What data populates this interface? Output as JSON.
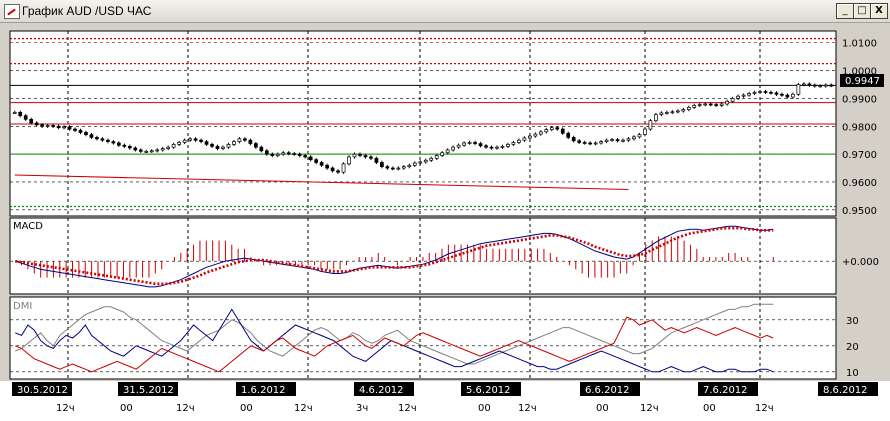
{
  "window": {
    "title": "График AUD /USD ЧАС",
    "minimize_label": "_",
    "maximize_label": "□",
    "close_label": "X"
  },
  "chart_data": [
    {
      "type": "line",
      "panel": "price",
      "y_ticks": [
        "1.0100",
        "1.0000",
        "0.9900",
        "0.9800",
        "0.9700",
        "0.9600",
        "0.9500"
      ],
      "y_tick_values": [
        1.01,
        1.0,
        0.99,
        0.98,
        0.97,
        0.96,
        0.95
      ],
      "ylim": [
        0.9485,
        1.0135
      ],
      "current_price_label": "0.9947",
      "current_price": 0.9947,
      "x_bars": 150,
      "close": [
        0.985,
        0.9838,
        0.9825,
        0.9812,
        0.9805,
        0.98,
        0.9803,
        0.98,
        0.9795,
        0.9798,
        0.979,
        0.9785,
        0.9778,
        0.977,
        0.976,
        0.9755,
        0.975,
        0.9745,
        0.974,
        0.9732,
        0.9728,
        0.9722,
        0.9715,
        0.971,
        0.971,
        0.9712,
        0.9715,
        0.972,
        0.9725,
        0.9735,
        0.9742,
        0.975,
        0.9755,
        0.975,
        0.9745,
        0.9735,
        0.9728,
        0.972,
        0.9725,
        0.9735,
        0.9745,
        0.9755,
        0.975,
        0.9738,
        0.9725,
        0.9712,
        0.97,
        0.9695,
        0.97,
        0.9705,
        0.9702,
        0.97,
        0.9695,
        0.969,
        0.968,
        0.967,
        0.966,
        0.965,
        0.964,
        0.9635,
        0.9665,
        0.969,
        0.97,
        0.9695,
        0.969,
        0.9685,
        0.967,
        0.9655,
        0.965,
        0.9648,
        0.965,
        0.9655,
        0.966,
        0.9668,
        0.9672,
        0.9678,
        0.9685,
        0.9695,
        0.9705,
        0.9715,
        0.9725,
        0.9732,
        0.974,
        0.9742,
        0.9738,
        0.973,
        0.9725,
        0.9722,
        0.9725,
        0.9728,
        0.9735,
        0.9742,
        0.975,
        0.9758,
        0.9765,
        0.9772,
        0.978,
        0.9788,
        0.9795,
        0.979,
        0.9775,
        0.976,
        0.9748,
        0.9742,
        0.974,
        0.9738,
        0.974,
        0.9745,
        0.975,
        0.9752,
        0.9748,
        0.975,
        0.9755,
        0.9762,
        0.977,
        0.979,
        0.982,
        0.9842,
        0.9848,
        0.985,
        0.9852,
        0.9855,
        0.986,
        0.9868,
        0.9875,
        0.9878,
        0.988,
        0.9878,
        0.9875,
        0.988,
        0.989,
        0.99,
        0.9908,
        0.9912,
        0.9918,
        0.9922,
        0.9925,
        0.9922,
        0.992,
        0.9915,
        0.9912,
        0.9905,
        0.9915,
        0.995,
        0.9952,
        0.9948,
        0.9945,
        0.9945,
        0.9948,
        0.9947
      ],
      "horizontal_lines": [
        {
          "value": 1.0115,
          "color": "#cc0000",
          "style": "dotted"
        },
        {
          "value": 1.0025,
          "color": "#cc0000",
          "style": "dotted"
        },
        {
          "value": 0.9947,
          "color": "#000000",
          "style": "solid"
        },
        {
          "value": 0.9885,
          "color": "#cc0000",
          "style": "solid"
        },
        {
          "value": 0.9808,
          "color": "#cc0000",
          "style": "solid"
        },
        {
          "value": 0.97,
          "color": "#008800",
          "style": "solid"
        },
        {
          "value": 0.9512,
          "color": "#008800",
          "style": "dotted"
        }
      ],
      "trendline": {
        "from_bar": 0,
        "from_value": 0.9625,
        "to_bar": 112,
        "to_value": 0.9573,
        "color": "#cc0000"
      }
    },
    {
      "type": "line",
      "panel": "macd",
      "label": "MACD",
      "y_ticks": [
        "+0.000"
      ],
      "y_tick_values": [
        0
      ],
      "ylim": [
        -0.003,
        0.004
      ],
      "macd": [
        0.0,
        -0.0002,
        -0.0004,
        -0.0006,
        -0.0008,
        -0.0009,
        -0.001,
        -0.0011,
        -0.0012,
        -0.0013,
        -0.0014,
        -0.0015,
        -0.0016,
        -0.0017,
        -0.0018,
        -0.0019,
        -0.002,
        -0.0021,
        -0.0022,
        -0.0023,
        -0.0024,
        -0.0025,
        -0.0025,
        -0.0024,
        -0.0022,
        -0.002,
        -0.0018,
        -0.0015,
        -0.0012,
        -0.0009,
        -0.0006,
        -0.0004,
        -0.0002,
        0.0,
        0.0001,
        0.0002,
        0.0003,
        0.0002,
        0.0001,
        0.0,
        -0.0001,
        -0.0002,
        -0.0003,
        -0.0004,
        -0.0005,
        -0.0006,
        -0.0007,
        -0.0008,
        -0.001,
        -0.0011,
        -0.0012,
        -0.0012,
        -0.0011,
        -0.0009,
        -0.0007,
        -0.0006,
        -0.0005,
        -0.0004,
        -0.0005,
        -0.0006,
        -0.0007,
        -0.0006,
        -0.0005,
        -0.0004,
        -0.0003,
        -0.0001,
        0.0001,
        0.0004,
        0.0007,
        0.0009,
        0.0011,
        0.0013,
        0.0015,
        0.0017,
        0.0018,
        0.0019,
        0.002,
        0.0021,
        0.0022,
        0.0023,
        0.0024,
        0.0025,
        0.0026,
        0.0027,
        0.0027,
        0.0026,
        0.0024,
        0.0022,
        0.0019,
        0.0016,
        0.0013,
        0.001,
        0.0008,
        0.0006,
        0.0004,
        0.0003,
        0.0002,
        0.0004,
        0.0008,
        0.0012,
        0.0016,
        0.002,
        0.0023,
        0.0026,
        0.0029,
        0.003,
        0.0031,
        0.0031,
        0.003,
        0.0031,
        0.0032,
        0.0033,
        0.0034,
        0.0034,
        0.0033,
        0.0032,
        0.0031,
        0.003,
        0.003,
        0.0031
      ],
      "signal": [
        0.0,
        -0.0001,
        -0.0002,
        -0.0003,
        -0.0004,
        -0.0005,
        -0.0006,
        -0.0007,
        -0.0008,
        -0.0009,
        -0.001,
        -0.0011,
        -0.0012,
        -0.0013,
        -0.0014,
        -0.0015,
        -0.0016,
        -0.0017,
        -0.0018,
        -0.0019,
        -0.002,
        -0.0021,
        -0.0022,
        -0.0022,
        -0.0022,
        -0.0021,
        -0.002,
        -0.0018,
        -0.0016,
        -0.0014,
        -0.0011,
        -0.0009,
        -0.0007,
        -0.0005,
        -0.0003,
        -0.0001,
        0.0,
        0.0001,
        0.0001,
        0.0001,
        0.0,
        -0.0001,
        -0.0002,
        -0.0003,
        -0.0004,
        -0.0005,
        -0.0006,
        -0.0007,
        -0.0008,
        -0.0009,
        -0.001,
        -0.001,
        -0.001,
        -0.0009,
        -0.0008,
        -0.0007,
        -0.0006,
        -0.0006,
        -0.0006,
        -0.0006,
        -0.0006,
        -0.0006,
        -0.0006,
        -0.0005,
        -0.0004,
        -0.0003,
        -0.0001,
        0.0001,
        0.0003,
        0.0005,
        0.0007,
        0.0009,
        0.0011,
        0.0013,
        0.0015,
        0.0016,
        0.0017,
        0.0018,
        0.0019,
        0.002,
        0.0021,
        0.0022,
        0.0023,
        0.0024,
        0.0025,
        0.0025,
        0.0024,
        0.0023,
        0.0021,
        0.0019,
        0.0017,
        0.0014,
        0.0012,
        0.001,
        0.0008,
        0.0006,
        0.0005,
        0.0005,
        0.0006,
        0.0008,
        0.0011,
        0.0014,
        0.0017,
        0.002,
        0.0023,
        0.0025,
        0.0027,
        0.0028,
        0.0029,
        0.003,
        0.0031,
        0.0032,
        0.0032,
        0.0032,
        0.0032,
        0.0031,
        0.0031,
        0.003,
        0.003,
        0.003
      ]
    },
    {
      "type": "line",
      "panel": "dmi",
      "label": "DMI",
      "y_ticks": [
        "30",
        "20",
        "10"
      ],
      "y_tick_values": [
        30,
        20,
        10
      ],
      "ylim": [
        8,
        38
      ],
      "series": [
        {
          "color": "#808080",
          "values": [
            18,
            19,
            21,
            23,
            25,
            22,
            20,
            24,
            26,
            28,
            30,
            32,
            33,
            34,
            35,
            35,
            34,
            33,
            31,
            30,
            28,
            26,
            24,
            22,
            21,
            20,
            19,
            18,
            20,
            22,
            24,
            25,
            26,
            28,
            30,
            29,
            27,
            25,
            22,
            20,
            18,
            17,
            16,
            18,
            20,
            22,
            24,
            26,
            27,
            26,
            24,
            22,
            23,
            25,
            24,
            22,
            21,
            22,
            24,
            25,
            26,
            24,
            22,
            21,
            20,
            19,
            18,
            17,
            16,
            15,
            14,
            13,
            13,
            14,
            15,
            16,
            17,
            18,
            19,
            20,
            21,
            22,
            23,
            24,
            25,
            26,
            27,
            27,
            26,
            25,
            24,
            23,
            22,
            21,
            20,
            19,
            18,
            17,
            17,
            18,
            19,
            21,
            23,
            25,
            26,
            27,
            28,
            29,
            30,
            31,
            32,
            33,
            34,
            34,
            35,
            35,
            36,
            36,
            36,
            36
          ]
        },
        {
          "color": "#000080",
          "values": [
            25,
            24,
            28,
            26,
            22,
            20,
            19,
            22,
            24,
            23,
            25,
            28,
            24,
            22,
            20,
            18,
            17,
            16,
            18,
            20,
            19,
            18,
            17,
            16,
            18,
            20,
            22,
            25,
            28,
            26,
            24,
            22,
            26,
            30,
            34,
            30,
            26,
            22,
            20,
            18,
            20,
            22,
            24,
            26,
            28,
            27,
            26,
            25,
            24,
            23,
            22,
            20,
            18,
            16,
            15,
            14,
            16,
            18,
            20,
            22,
            21,
            20,
            19,
            18,
            17,
            16,
            15,
            14,
            13,
            12,
            12,
            13,
            14,
            15,
            16,
            17,
            18,
            17,
            16,
            15,
            14,
            13,
            12,
            12,
            11,
            11,
            12,
            13,
            14,
            15,
            16,
            17,
            18,
            17,
            16,
            15,
            14,
            13,
            12,
            11,
            10,
            10,
            11,
            12,
            11,
            10,
            10,
            11,
            12,
            11,
            10,
            10,
            11,
            11,
            10,
            10,
            10,
            11,
            11,
            10
          ]
        },
        {
          "color": "#cc0000",
          "values": [
            20,
            19,
            17,
            15,
            14,
            13,
            12,
            11,
            12,
            13,
            12,
            11,
            10,
            11,
            12,
            13,
            14,
            13,
            12,
            11,
            13,
            15,
            17,
            19,
            18,
            17,
            16,
            15,
            14,
            13,
            12,
            11,
            10,
            12,
            14,
            16,
            18,
            20,
            19,
            18,
            20,
            22,
            23,
            21,
            19,
            18,
            17,
            16,
            18,
            20,
            21,
            22,
            23,
            24,
            22,
            20,
            19,
            21,
            23,
            22,
            21,
            20,
            22,
            24,
            25,
            24,
            23,
            22,
            21,
            20,
            19,
            18,
            17,
            16,
            17,
            18,
            19,
            20,
            21,
            22,
            21,
            20,
            19,
            18,
            17,
            16,
            15,
            14,
            15,
            16,
            17,
            18,
            19,
            20,
            21,
            26,
            31,
            30,
            28,
            29,
            30,
            28,
            26,
            27,
            26,
            25,
            26,
            27,
            26,
            25,
            24,
            25,
            26,
            27,
            26,
            25,
            24,
            23,
            24,
            23
          ]
        }
      ]
    }
  ],
  "x_axis": {
    "date_labels": [
      "30.5.2012",
      "31.5.2012",
      "1.6.2012",
      "4.6.2012",
      "5.6.2012",
      "6.6.2012",
      "7.6.2012",
      "8.6.2012"
    ],
    "hour_labels": [
      "12ч",
      "00",
      "12ч",
      "00",
      "12ч",
      "3ч",
      "12ч",
      "00",
      "12ч",
      "00",
      "12ч",
      "00",
      "12ч"
    ]
  }
}
